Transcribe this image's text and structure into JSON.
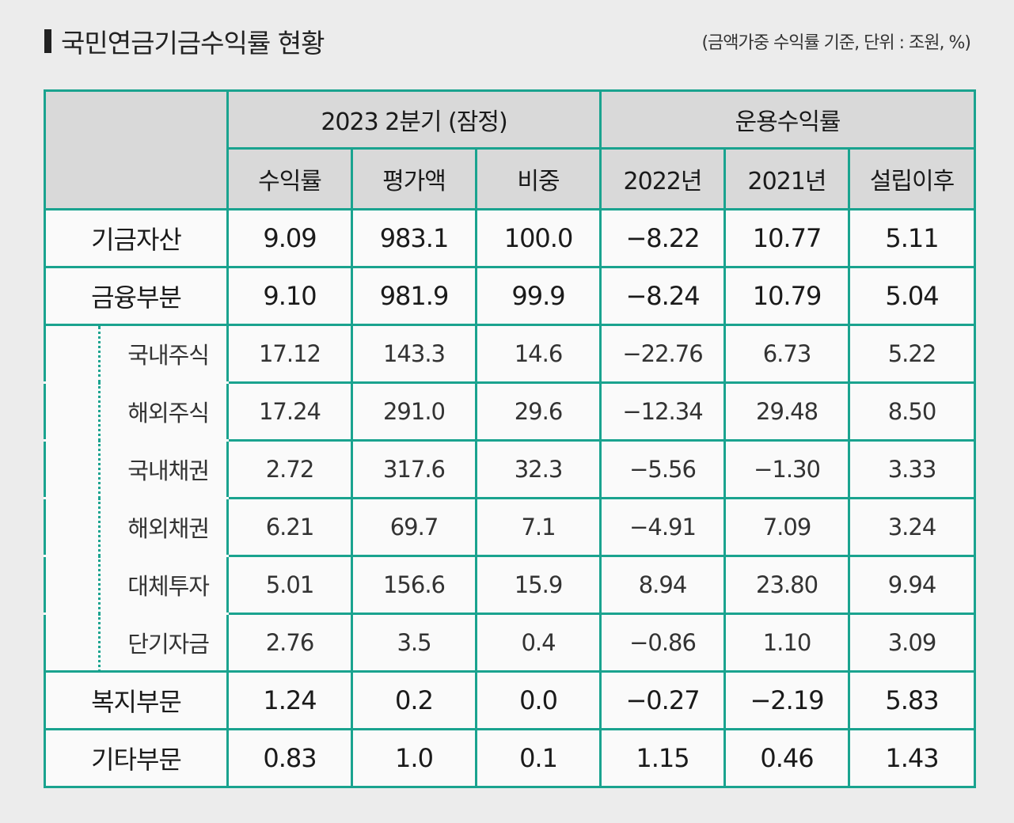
{
  "title": "국민연금기금수익률 현황",
  "note": "(금액가중 수익률 기준, 단위 : 조원, %)",
  "header": {
    "group1": "2023  2분기 (잠정)",
    "group2": "운용수익률",
    "cols": [
      "수익률",
      "평가액",
      "비중",
      "2022년",
      "2021년",
      "설립이후"
    ]
  },
  "rows": [
    {
      "label": "기금자산",
      "values": [
        "9.09",
        "983.1",
        "100.0",
        "−8.22",
        "10.77",
        "5.11"
      ]
    },
    {
      "label": "금융부분",
      "values": [
        "9.10",
        "981.9",
        "99.9",
        "−8.24",
        "10.79",
        "5.04"
      ]
    },
    {
      "label": "국내주식",
      "values": [
        "17.12",
        "143.3",
        "14.6",
        "−22.76",
        "6.73",
        "5.22"
      ]
    },
    {
      "label": "해외주식",
      "values": [
        "17.24",
        "291.0",
        "29.6",
        "−12.34",
        "29.48",
        "8.50"
      ]
    },
    {
      "label": "국내채권",
      "values": [
        "2.72",
        "317.6",
        "32.3",
        "−5.56",
        "−1.30",
        "3.33"
      ]
    },
    {
      "label": "해외채권",
      "values": [
        "6.21",
        "69.7",
        "7.1",
        "−4.91",
        "7.09",
        "3.24"
      ]
    },
    {
      "label": "대체투자",
      "values": [
        "5.01",
        "156.6",
        "15.9",
        "8.94",
        "23.80",
        "9.94"
      ]
    },
    {
      "label": "단기자금",
      "values": [
        "2.76",
        "3.5",
        "0.4",
        "−0.86",
        "1.10",
        "3.09"
      ]
    },
    {
      "label": "복지부문",
      "values": [
        "1.24",
        "0.2",
        "0.0",
        "−0.27",
        "−2.19",
        "5.83"
      ]
    },
    {
      "label": "기타부문",
      "values": [
        "0.83",
        "1.0",
        "0.1",
        "1.15",
        "0.46",
        "1.43"
      ]
    }
  ],
  "colors": {
    "border": "#1aa38f",
    "header_bg": "#d9d9d9",
    "page_bg": "#ececec"
  }
}
